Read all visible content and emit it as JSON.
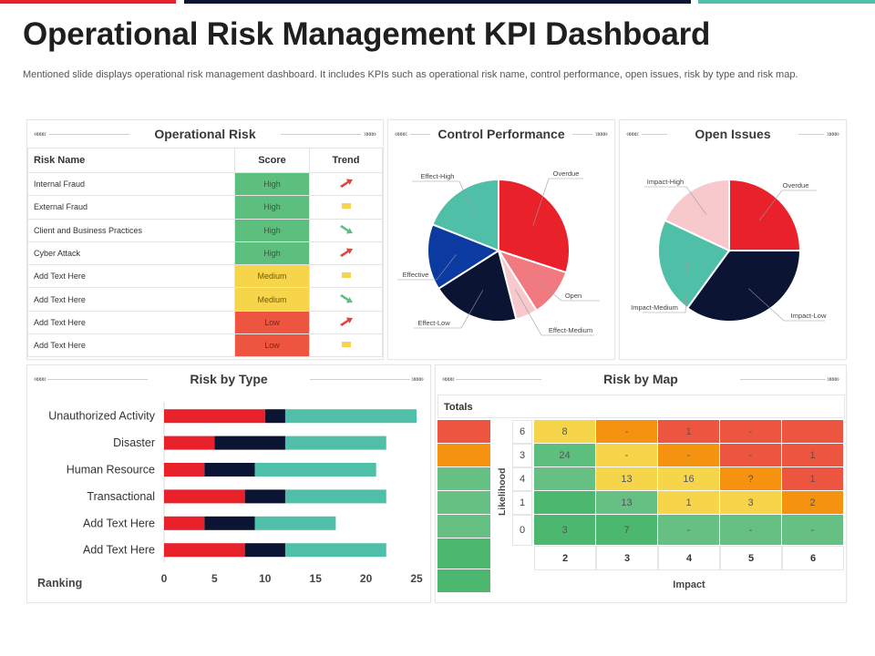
{
  "header": {
    "title": "Operational Risk Management KPI Dashboard",
    "subtitle": "Mentioned slide displays operational risk management dashboard. It includes KPIs such as operational risk name, control performance, open issues, risk by type and risk map."
  },
  "colors": {
    "red": "#e8212b",
    "navy": "#0b1533",
    "teal": "#4fbfa8",
    "blue": "#0b3aa0",
    "salmon": "#f07a80",
    "pink": "#f7c9cc",
    "high_green": "#5dbf7e",
    "medium_yellow": "#f7d54a",
    "low_red": "#ee5540"
  },
  "decor": {
    "arrow_left": "««««",
    "arrow_right": "»»»»"
  },
  "operational_risk": {
    "title": "Operational Risk",
    "columns": [
      "Risk Name",
      "Score",
      "Trend"
    ],
    "rows": [
      {
        "name": "Internal Fraud",
        "score": "High",
        "level": "high",
        "trend": "up"
      },
      {
        "name": "External Fraud",
        "score": "High",
        "level": "high",
        "trend": "flat"
      },
      {
        "name": "Client and Business Practices",
        "score": "High",
        "level": "high",
        "trend": "down"
      },
      {
        "name": "Cyber Attack",
        "score": "High",
        "level": "high",
        "trend": "up"
      },
      {
        "name": "Add Text Here",
        "score": "Medium",
        "level": "medium",
        "trend": "flat"
      },
      {
        "name": "Add Text Here",
        "score": "Medium",
        "level": "medium",
        "trend": "down"
      },
      {
        "name": "Add Text Here",
        "score": "Low",
        "level": "low",
        "trend": "up"
      },
      {
        "name": "Add Text Here",
        "score": "Low",
        "level": "low",
        "trend": "flat"
      }
    ]
  },
  "chart_data": [
    {
      "id": "control_performance",
      "type": "pie",
      "title": "Control Performance",
      "labels": [
        "Overdue",
        "Open",
        "Effect-Medium",
        "Effect-Low",
        "Effective",
        "Effect-High"
      ],
      "values": [
        30,
        11,
        5,
        20,
        15,
        19
      ],
      "colors": [
        "#e8212b",
        "#f07a80",
        "#f7c9cc",
        "#0b1533",
        "#0b3aa0",
        "#4fbfa8"
      ]
    },
    {
      "id": "open_issues",
      "type": "pie",
      "title": "Open Issues",
      "labels": [
        "Overdue",
        "Impact-Low",
        "Impact-Medium",
        "Impact-High"
      ],
      "values": [
        25,
        35,
        22,
        18
      ],
      "colors": [
        "#e8212b",
        "#0b1533",
        "#4fbfa8",
        "#f7c9cc"
      ]
    },
    {
      "id": "risk_by_type",
      "type": "bar",
      "orientation": "horizontal",
      "stacked": true,
      "title": "Risk by Type",
      "xlabel": "Ranking",
      "categories": [
        "Unauthorized Activity",
        "Disaster",
        "Human Resource",
        "Transactional",
        "Add Text Here",
        "Add Text Here"
      ],
      "series": [
        {
          "name": "Series 1",
          "color": "#e8212b",
          "values": [
            10,
            5,
            4,
            8,
            4,
            8
          ]
        },
        {
          "name": "Series 2",
          "color": "#0b1533",
          "values": [
            2,
            7,
            5,
            4,
            5,
            4
          ]
        },
        {
          "name": "Series 3",
          "color": "#4fbfa8",
          "values": [
            13,
            10,
            12,
            10,
            8,
            10
          ]
        }
      ],
      "xlim": [
        0,
        25
      ],
      "xticks": [
        "0",
        "5",
        "10",
        "15",
        "20",
        "25"
      ],
      "legend": "none"
    },
    {
      "id": "risk_by_map",
      "type": "heatmap",
      "title": "Risk by Map",
      "totals_label": "Totals",
      "ylabel": "Likelihood",
      "xlabel": "Impact",
      "y_labels": [
        "6",
        "3",
        "4",
        "1",
        "0"
      ],
      "x_labels": [
        "2",
        "3",
        "4",
        "5",
        "6"
      ],
      "cells": [
        [
          {
            "v": "8",
            "c": "#f7d54a"
          },
          {
            "v": "-",
            "c": "#f5920f"
          },
          {
            "v": "1",
            "c": "#ee5540"
          },
          {
            "v": "-",
            "c": "#ee5540"
          },
          {
            "v": "",
            "c": "#ee5540"
          }
        ],
        [
          {
            "v": "24",
            "c": "#5dbf7e"
          },
          {
            "v": "-",
            "c": "#f7d54a"
          },
          {
            "v": "-",
            "c": "#f5920f"
          },
          {
            "v": "-",
            "c": "#ee5540"
          },
          {
            "v": "1",
            "c": "#ee5540"
          }
        ],
        [
          {
            "v": "",
            "c": "#66c084"
          },
          {
            "v": "13",
            "c": "#f7d54a"
          },
          {
            "v": "16",
            "c": "#f7d54a"
          },
          {
            "v": "?",
            "c": "#f5920f"
          },
          {
            "v": "1",
            "c": "#ee5540"
          }
        ],
        [
          {
            "v": "",
            "c": "#4cb86f"
          },
          {
            "v": "13",
            "c": "#66c084"
          },
          {
            "v": "1",
            "c": "#f7d54a"
          },
          {
            "v": "3",
            "c": "#f7d54a"
          },
          {
            "v": "2",
            "c": "#f5920f"
          }
        ],
        [
          {
            "v": "3",
            "c": "#4cb86f"
          },
          {
            "v": "7",
            "c": "#4cb86f"
          },
          {
            "v": "-",
            "c": "#66c084"
          },
          {
            "v": "-",
            "c": "#66c084"
          },
          {
            "v": "-",
            "c": "#66c084"
          }
        ]
      ],
      "totals_colors": [
        "#ee5540",
        "#f5920f",
        "#66c084",
        "#66c084",
        "#66c084",
        "#4cb86f",
        "#4cb86f"
      ]
    }
  ]
}
